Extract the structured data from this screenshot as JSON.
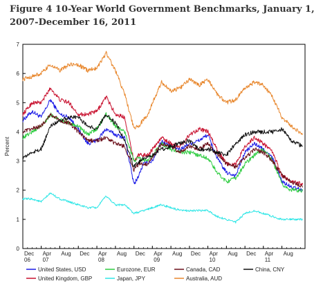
{
  "chart_data": {
    "type": "line",
    "title": "Figure 4   10-Year World Government Benchmarks, January 1, 2007-December 16, 2011",
    "ylabel": "Percent",
    "xlabel": "",
    "ylim": [
      0,
      7
    ],
    "yticks": [
      "0",
      "1",
      "2",
      "3",
      "4",
      "5",
      "6",
      "7"
    ],
    "xlim": [
      "2006-12-01",
      "2011-12-31"
    ],
    "x_month_labels": [
      {
        "x": "2006-12-01",
        "label": "Dec"
      },
      {
        "x": "2007-04-01",
        "label": "Apr"
      },
      {
        "x": "2007-08-01",
        "label": "Aug"
      },
      {
        "x": "2007-12-01",
        "label": "Dec"
      },
      {
        "x": "2008-04-01",
        "label": "Apr"
      },
      {
        "x": "2008-08-01",
        "label": "Aug"
      },
      {
        "x": "2008-12-01",
        "label": "Dec"
      },
      {
        "x": "2009-04-01",
        "label": "Apr"
      },
      {
        "x": "2009-08-01",
        "label": "Aug"
      },
      {
        "x": "2009-12-01",
        "label": "Dec"
      },
      {
        "x": "2010-04-01",
        "label": "Apr"
      },
      {
        "x": "2010-08-01",
        "label": "Aug"
      },
      {
        "x": "2010-12-01",
        "label": "Dec"
      },
      {
        "x": "2011-04-01",
        "label": "Apr"
      },
      {
        "x": "2011-08-01",
        "label": "Aug"
      }
    ],
    "x_year_labels": [
      {
        "x": "2006-12-01",
        "label": "06"
      },
      {
        "x": "2007-04-01",
        "label": "07"
      },
      {
        "x": "2008-04-01",
        "label": "08"
      },
      {
        "x": "2009-04-01",
        "label": "09"
      },
      {
        "x": "2010-04-01",
        "label": "10"
      },
      {
        "x": "2011-04-01",
        "label": "11"
      }
    ],
    "grid": false,
    "legend_position": "bottom",
    "series": [
      {
        "name": "United States, USD",
        "color": "#1a1ae6",
        "points": [
          [
            "2006-12-01",
            4.4
          ],
          [
            "2007-02-01",
            4.7
          ],
          [
            "2007-04-01",
            4.5
          ],
          [
            "2007-06-01",
            5.1
          ],
          [
            "2007-08-01",
            4.6
          ],
          [
            "2007-10-01",
            4.5
          ],
          [
            "2007-12-01",
            4.1
          ],
          [
            "2008-02-01",
            3.6
          ],
          [
            "2008-04-01",
            3.7
          ],
          [
            "2008-06-01",
            4.1
          ],
          [
            "2008-08-01",
            3.9
          ],
          [
            "2008-10-01",
            3.8
          ],
          [
            "2008-12-01",
            2.2
          ],
          [
            "2009-01-01",
            2.5
          ],
          [
            "2009-02-01",
            2.9
          ],
          [
            "2009-04-01",
            3.0
          ],
          [
            "2009-06-01",
            3.7
          ],
          [
            "2009-08-01",
            3.5
          ],
          [
            "2009-10-01",
            3.4
          ],
          [
            "2009-12-01",
            3.6
          ],
          [
            "2010-02-01",
            3.7
          ],
          [
            "2010-04-01",
            3.9
          ],
          [
            "2010-06-01",
            3.1
          ],
          [
            "2010-08-01",
            2.6
          ],
          [
            "2010-10-01",
            2.5
          ],
          [
            "2010-12-01",
            3.3
          ],
          [
            "2011-02-01",
            3.6
          ],
          [
            "2011-04-01",
            3.4
          ],
          [
            "2011-06-01",
            3.1
          ],
          [
            "2011-08-01",
            2.3
          ],
          [
            "2011-10-01",
            2.1
          ],
          [
            "2011-12-16",
            2.0
          ]
        ]
      },
      {
        "name": "United Kingdom, GBP",
        "color": "#c8102e",
        "points": [
          [
            "2006-12-01",
            4.6
          ],
          [
            "2007-02-01",
            5.0
          ],
          [
            "2007-04-01",
            5.0
          ],
          [
            "2007-06-01",
            5.5
          ],
          [
            "2007-08-01",
            5.1
          ],
          [
            "2007-10-01",
            5.0
          ],
          [
            "2007-12-01",
            4.6
          ],
          [
            "2008-02-01",
            4.6
          ],
          [
            "2008-04-01",
            4.7
          ],
          [
            "2008-06-01",
            5.2
          ],
          [
            "2008-08-01",
            4.6
          ],
          [
            "2008-10-01",
            4.5
          ],
          [
            "2008-12-01",
            3.0
          ],
          [
            "2009-01-01",
            3.2
          ],
          [
            "2009-03-01",
            3.2
          ],
          [
            "2009-06-01",
            3.8
          ],
          [
            "2009-08-01",
            3.6
          ],
          [
            "2009-10-01",
            3.5
          ],
          [
            "2009-12-01",
            3.9
          ],
          [
            "2010-02-01",
            4.1
          ],
          [
            "2010-04-01",
            4.0
          ],
          [
            "2010-06-01",
            3.4
          ],
          [
            "2010-08-01",
            2.9
          ],
          [
            "2010-10-01",
            2.9
          ],
          [
            "2010-12-01",
            3.5
          ],
          [
            "2011-02-01",
            3.8
          ],
          [
            "2011-04-01",
            3.6
          ],
          [
            "2011-06-01",
            3.3
          ],
          [
            "2011-08-01",
            2.5
          ],
          [
            "2011-10-01",
            2.3
          ],
          [
            "2011-12-16",
            2.2
          ]
        ]
      },
      {
        "name": "Eurozone, EUR",
        "color": "#2ecc40",
        "points": [
          [
            "2006-12-01",
            3.8
          ],
          [
            "2007-02-01",
            4.0
          ],
          [
            "2007-04-01",
            4.2
          ],
          [
            "2007-06-01",
            4.6
          ],
          [
            "2007-08-01",
            4.4
          ],
          [
            "2007-10-01",
            4.3
          ],
          [
            "2007-12-01",
            4.2
          ],
          [
            "2008-02-01",
            3.9
          ],
          [
            "2008-04-01",
            4.1
          ],
          [
            "2008-06-01",
            4.6
          ],
          [
            "2008-08-01",
            4.2
          ],
          [
            "2008-10-01",
            4.0
          ],
          [
            "2008-12-01",
            3.0
          ],
          [
            "2009-01-01",
            3.1
          ],
          [
            "2009-03-01",
            3.0
          ],
          [
            "2009-06-01",
            3.6
          ],
          [
            "2009-08-01",
            3.4
          ],
          [
            "2009-10-01",
            3.3
          ],
          [
            "2009-12-01",
            3.3
          ],
          [
            "2010-02-01",
            3.2
          ],
          [
            "2010-04-01",
            3.1
          ],
          [
            "2010-06-01",
            2.6
          ],
          [
            "2010-08-01",
            2.3
          ],
          [
            "2010-10-01",
            2.4
          ],
          [
            "2010-12-01",
            2.9
          ],
          [
            "2011-02-01",
            3.2
          ],
          [
            "2011-04-01",
            3.4
          ],
          [
            "2011-06-01",
            3.0
          ],
          [
            "2011-08-01",
            2.2
          ],
          [
            "2011-10-01",
            2.0
          ],
          [
            "2011-12-16",
            2.0
          ]
        ]
      },
      {
        "name": "Japan, JPY",
        "color": "#2ee6e6",
        "points": [
          [
            "2006-12-01",
            1.7
          ],
          [
            "2007-02-01",
            1.7
          ],
          [
            "2007-04-01",
            1.6
          ],
          [
            "2007-06-01",
            1.9
          ],
          [
            "2007-08-01",
            1.7
          ],
          [
            "2007-10-01",
            1.6
          ],
          [
            "2007-12-01",
            1.5
          ],
          [
            "2008-02-01",
            1.4
          ],
          [
            "2008-04-01",
            1.4
          ],
          [
            "2008-06-01",
            1.8
          ],
          [
            "2008-08-01",
            1.5
          ],
          [
            "2008-10-01",
            1.5
          ],
          [
            "2008-12-01",
            1.2
          ],
          [
            "2009-02-01",
            1.3
          ],
          [
            "2009-04-01",
            1.4
          ],
          [
            "2009-06-01",
            1.5
          ],
          [
            "2009-08-01",
            1.4
          ],
          [
            "2009-10-01",
            1.3
          ],
          [
            "2009-12-01",
            1.3
          ],
          [
            "2010-02-01",
            1.3
          ],
          [
            "2010-04-01",
            1.3
          ],
          [
            "2010-06-01",
            1.1
          ],
          [
            "2010-08-01",
            1.0
          ],
          [
            "2010-10-01",
            0.9
          ],
          [
            "2010-12-01",
            1.2
          ],
          [
            "2011-02-01",
            1.3
          ],
          [
            "2011-04-01",
            1.2
          ],
          [
            "2011-06-01",
            1.1
          ],
          [
            "2011-08-01",
            1.0
          ],
          [
            "2011-10-01",
            1.0
          ],
          [
            "2011-12-16",
            1.0
          ]
        ]
      },
      {
        "name": "Canada, CAD",
        "color": "#6b0f1a",
        "points": [
          [
            "2006-12-01",
            4.0
          ],
          [
            "2007-02-01",
            4.1
          ],
          [
            "2007-04-01",
            4.2
          ],
          [
            "2007-06-01",
            4.6
          ],
          [
            "2007-08-01",
            4.4
          ],
          [
            "2007-10-01",
            4.3
          ],
          [
            "2007-12-01",
            4.0
          ],
          [
            "2008-02-01",
            3.7
          ],
          [
            "2008-04-01",
            3.7
          ],
          [
            "2008-06-01",
            3.8
          ],
          [
            "2008-08-01",
            3.6
          ],
          [
            "2008-10-01",
            3.5
          ],
          [
            "2008-12-01",
            2.7
          ],
          [
            "2009-01-01",
            2.9
          ],
          [
            "2009-03-01",
            2.9
          ],
          [
            "2009-06-01",
            3.6
          ],
          [
            "2009-08-01",
            3.5
          ],
          [
            "2009-10-01",
            3.3
          ],
          [
            "2009-12-01",
            3.5
          ],
          [
            "2010-02-01",
            3.4
          ],
          [
            "2010-04-01",
            3.6
          ],
          [
            "2010-06-01",
            3.2
          ],
          [
            "2010-08-01",
            2.9
          ],
          [
            "2010-10-01",
            2.8
          ],
          [
            "2010-12-01",
            3.1
          ],
          [
            "2011-02-01",
            3.4
          ],
          [
            "2011-04-01",
            3.3
          ],
          [
            "2011-06-01",
            3.0
          ],
          [
            "2011-08-01",
            2.5
          ],
          [
            "2011-10-01",
            2.3
          ],
          [
            "2011-12-16",
            2.1
          ]
        ]
      },
      {
        "name": "Australia, AUD",
        "color": "#e8872d",
        "points": [
          [
            "2006-12-01",
            5.8
          ],
          [
            "2007-02-01",
            5.9
          ],
          [
            "2007-04-01",
            6.0
          ],
          [
            "2007-06-01",
            6.3
          ],
          [
            "2007-08-01",
            6.1
          ],
          [
            "2007-10-01",
            6.3
          ],
          [
            "2007-12-01",
            6.3
          ],
          [
            "2008-02-01",
            6.1
          ],
          [
            "2008-04-01",
            6.2
          ],
          [
            "2008-06-01",
            6.7
          ],
          [
            "2008-08-01",
            6.1
          ],
          [
            "2008-10-01",
            5.3
          ],
          [
            "2008-12-01",
            4.1
          ],
          [
            "2009-01-01",
            4.2
          ],
          [
            "2009-03-01",
            4.6
          ],
          [
            "2009-06-01",
            5.7
          ],
          [
            "2009-08-01",
            5.4
          ],
          [
            "2009-10-01",
            5.5
          ],
          [
            "2009-12-01",
            5.8
          ],
          [
            "2010-02-01",
            5.6
          ],
          [
            "2010-04-01",
            5.8
          ],
          [
            "2010-06-01",
            5.3
          ],
          [
            "2010-08-01",
            5.0
          ],
          [
            "2010-10-01",
            5.1
          ],
          [
            "2010-12-01",
            5.5
          ],
          [
            "2011-02-01",
            5.7
          ],
          [
            "2011-04-01",
            5.6
          ],
          [
            "2011-06-01",
            5.2
          ],
          [
            "2011-08-01",
            4.5
          ],
          [
            "2011-10-01",
            4.2
          ],
          [
            "2011-12-16",
            3.9
          ]
        ]
      },
      {
        "name": "China, CNY",
        "color": "#111111",
        "points": [
          [
            "2006-12-01",
            3.1
          ],
          [
            "2007-02-01",
            3.3
          ],
          [
            "2007-04-01",
            3.4
          ],
          [
            "2007-06-01",
            4.2
          ],
          [
            "2007-08-01",
            4.4
          ],
          [
            "2007-10-01",
            4.5
          ],
          [
            "2007-12-01",
            4.5
          ],
          [
            "2008-02-01",
            4.2
          ],
          [
            "2008-04-01",
            4.1
          ],
          [
            "2008-06-01",
            4.6
          ],
          [
            "2008-08-01",
            4.3
          ],
          [
            "2008-10-01",
            3.7
          ],
          [
            "2008-12-01",
            2.8
          ],
          [
            "2009-02-01",
            3.1
          ],
          [
            "2009-04-01",
            3.2
          ],
          [
            "2009-06-01",
            3.4
          ],
          [
            "2009-08-01",
            3.5
          ],
          [
            "2009-10-01",
            3.6
          ],
          [
            "2009-12-01",
            3.7
          ],
          [
            "2010-02-01",
            3.4
          ],
          [
            "2010-04-01",
            3.4
          ],
          [
            "2010-06-01",
            3.3
          ],
          [
            "2010-08-01",
            3.2
          ],
          [
            "2010-10-01",
            3.6
          ],
          [
            "2010-12-01",
            3.9
          ],
          [
            "2011-02-01",
            4.0
          ],
          [
            "2011-04-01",
            4.0
          ],
          [
            "2011-06-01",
            4.0
          ],
          [
            "2011-08-01",
            4.1
          ],
          [
            "2011-10-01",
            3.7
          ],
          [
            "2011-12-16",
            3.5
          ]
        ]
      }
    ]
  }
}
